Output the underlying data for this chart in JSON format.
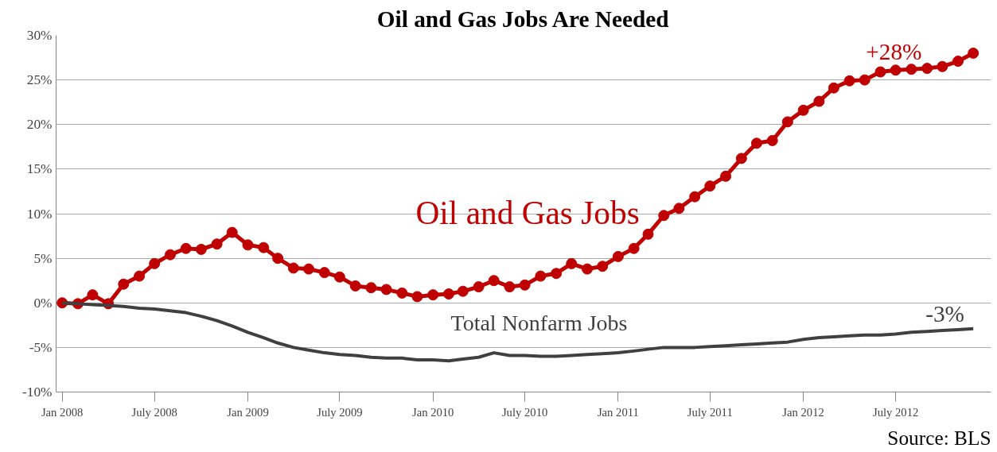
{
  "chart_data": {
    "type": "line",
    "title": "Oil and Gas Jobs Are Needed",
    "x": [
      "2008-01",
      "2008-02",
      "2008-03",
      "2008-04",
      "2008-05",
      "2008-06",
      "2008-07",
      "2008-08",
      "2008-09",
      "2008-10",
      "2008-11",
      "2008-12",
      "2009-01",
      "2009-02",
      "2009-03",
      "2009-04",
      "2009-05",
      "2009-06",
      "2009-07",
      "2009-08",
      "2009-09",
      "2009-10",
      "2009-11",
      "2009-12",
      "2010-01",
      "2010-02",
      "2010-03",
      "2010-04",
      "2010-05",
      "2010-06",
      "2010-07",
      "2010-08",
      "2010-09",
      "2010-10",
      "2010-11",
      "2010-12",
      "2011-01",
      "2011-02",
      "2011-03",
      "2011-04",
      "2011-05",
      "2011-06",
      "2011-07",
      "2011-08",
      "2011-09",
      "2011-10",
      "2011-11",
      "2011-12",
      "2012-01",
      "2012-02",
      "2012-03",
      "2012-04",
      "2012-05",
      "2012-06",
      "2012-07",
      "2012-08",
      "2012-09",
      "2012-10",
      "2012-11",
      "2012-12"
    ],
    "series": [
      {
        "name": "Oil and Gas Jobs",
        "color": "#c00000",
        "marker": "circle",
        "values": [
          0,
          -0.1,
          0.9,
          -0.1,
          2.1,
          3.0,
          4.4,
          5.4,
          6.1,
          6.0,
          6.6,
          7.9,
          6.5,
          6.2,
          5.0,
          3.9,
          3.8,
          3.4,
          2.9,
          1.9,
          1.7,
          1.5,
          1.1,
          0.7,
          0.9,
          1.0,
          1.3,
          1.8,
          2.5,
          1.8,
          2.0,
          3.0,
          3.3,
          4.4,
          3.8,
          4.1,
          5.2,
          6.1,
          7.7,
          9.8,
          10.6,
          11.9,
          13.1,
          14.2,
          16.2,
          17.9,
          18.2,
          20.3,
          21.6,
          22.6,
          24.1,
          24.9,
          25.0,
          25.9,
          26.1,
          26.2,
          26.3,
          26.5,
          27.1,
          28.0
        ]
      },
      {
        "name": "Total Nonfarm Jobs",
        "color": "#404040",
        "marker": "none",
        "values": [
          0,
          -0.1,
          -0.2,
          -0.3,
          -0.4,
          -0.6,
          -0.7,
          -0.9,
          -1.1,
          -1.5,
          -2.0,
          -2.6,
          -3.3,
          -3.9,
          -4.5,
          -5.0,
          -5.3,
          -5.6,
          -5.8,
          -5.9,
          -6.1,
          -6.2,
          -6.2,
          -6.4,
          -6.4,
          -6.5,
          -6.3,
          -6.1,
          -5.6,
          -5.9,
          -5.9,
          -6.0,
          -6.0,
          -5.9,
          -5.8,
          -5.7,
          -5.6,
          -5.4,
          -5.2,
          -5.0,
          -5.0,
          -5.0,
          -4.9,
          -4.8,
          -4.7,
          -4.6,
          -4.5,
          -4.4,
          -4.1,
          -3.9,
          -3.8,
          -3.7,
          -3.6,
          -3.6,
          -3.5,
          -3.3,
          -3.2,
          -3.1,
          -3.0,
          -2.9
        ]
      }
    ],
    "ylim": [
      -10,
      30
    ],
    "yticks": [
      {
        "value": -10,
        "label": "-10%"
      },
      {
        "value": -5,
        "label": "-5%"
      },
      {
        "value": 0,
        "label": "0%"
      },
      {
        "value": 5,
        "label": "5%"
      },
      {
        "value": 10,
        "label": "10%"
      },
      {
        "value": 15,
        "label": "15%"
      },
      {
        "value": 20,
        "label": "20%"
      },
      {
        "value": 25,
        "label": "25%"
      },
      {
        "value": 30,
        "label": "30%"
      }
    ],
    "xlim": [
      "2007-12-20",
      "2013-01-05"
    ],
    "xticks": [
      {
        "value": "2008-01",
        "label": "Jan 2008"
      },
      {
        "value": "2008-07",
        "label": "July 2008"
      },
      {
        "value": "2009-01",
        "label": "Jan 2009"
      },
      {
        "value": "2009-07",
        "label": "July 2009"
      },
      {
        "value": "2010-01",
        "label": "Jan 2010"
      },
      {
        "value": "2010-07",
        "label": "July 2010"
      },
      {
        "value": "2011-01",
        "label": "Jan 2011"
      },
      {
        "value": "2011-07",
        "label": "July 2011"
      },
      {
        "value": "2012-01",
        "label": "Jan 2012"
      },
      {
        "value": "2012-07",
        "label": "July 2012"
      }
    ],
    "grid": "y",
    "line_style": "solid",
    "annotations": [
      {
        "text": "+28%",
        "x": "2012-12",
        "y": 28
      },
      {
        "text": "-3%",
        "x": "2012-12",
        "y": -3
      },
      "Source: BLS"
    ]
  }
}
